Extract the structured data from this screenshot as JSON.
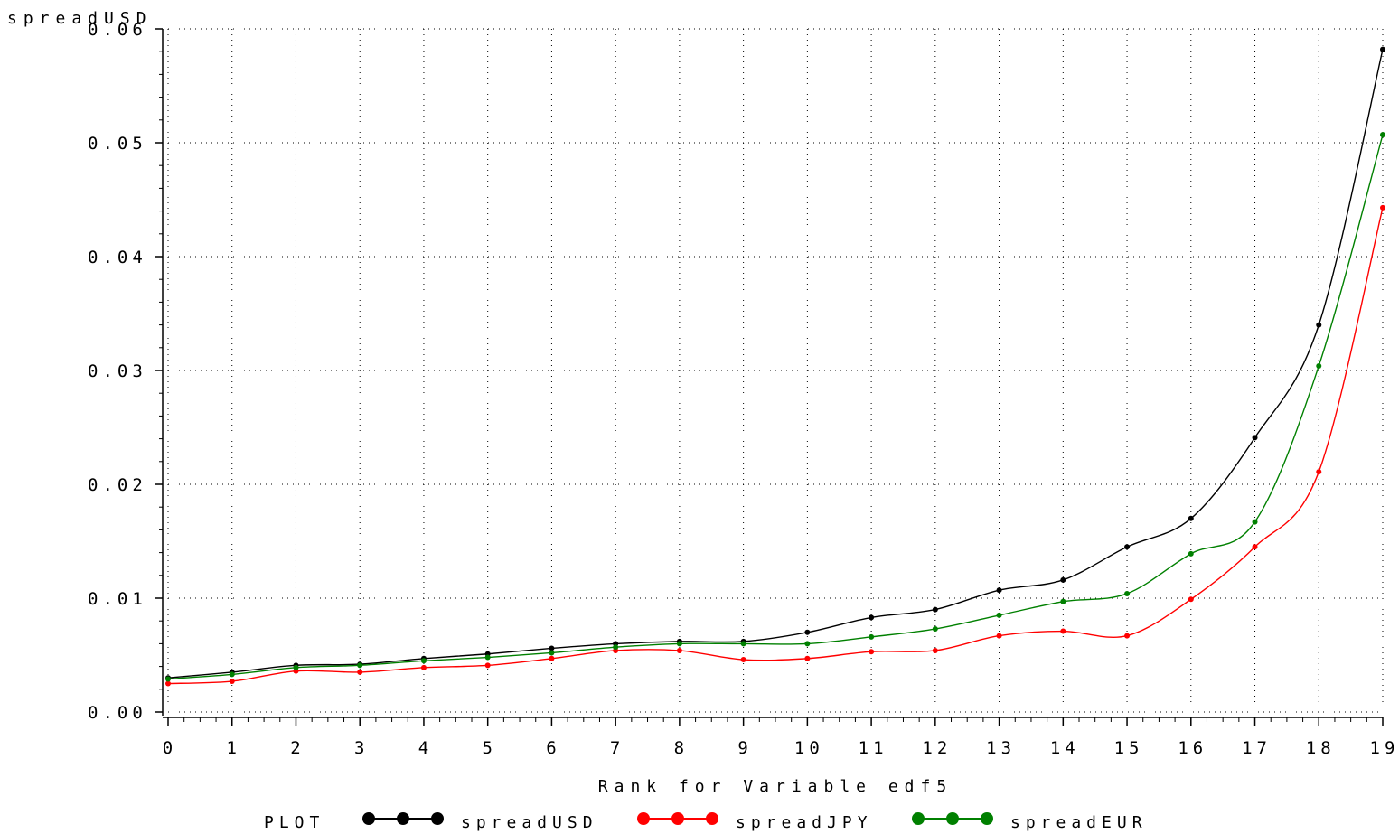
{
  "chart_data": {
    "type": "line",
    "ylabel": "spreadUSD",
    "xlabel": "Rank for Variable edf5",
    "x": [
      0,
      1,
      2,
      3,
      4,
      5,
      6,
      7,
      8,
      9,
      10,
      11,
      12,
      13,
      14,
      15,
      16,
      17,
      18,
      19
    ],
    "x_tick_labels": [
      "0",
      "1",
      "2",
      "3",
      "4",
      "5",
      "6",
      "7",
      "8",
      "9",
      "10",
      "11",
      "12",
      "13",
      "14",
      "15",
      "16",
      "17",
      "18",
      "19"
    ],
    "y_tick_labels": [
      "0.00",
      "0.01",
      "0.02",
      "0.03",
      "0.04",
      "0.05",
      "0.06"
    ],
    "y_ticks": [
      0,
      0.01,
      0.02,
      0.03,
      0.04,
      0.05,
      0.06
    ],
    "xlim": [
      0,
      19
    ],
    "ylim": [
      0,
      0.06
    ],
    "grid": true,
    "legend": {
      "title": "PLOT",
      "placement": "bottom"
    },
    "series": [
      {
        "name": "spreadUSD",
        "color": "#000000",
        "values": [
          0.003,
          0.0035,
          0.0041,
          0.0042,
          0.0047,
          0.0051,
          0.0056,
          0.006,
          0.0062,
          0.0062,
          0.007,
          0.0083,
          0.009,
          0.0107,
          0.0116,
          0.0145,
          0.017,
          0.0241,
          0.034,
          0.0582
        ]
      },
      {
        "name": "spreadJPY",
        "color": "#ff0000",
        "values": [
          0.0025,
          0.0027,
          0.0036,
          0.0035,
          0.0039,
          0.0041,
          0.0047,
          0.0054,
          0.0054,
          0.0046,
          0.0047,
          0.0053,
          0.0054,
          0.0067,
          0.0071,
          0.0067,
          0.0099,
          0.0145,
          0.0211,
          0.0443
        ]
      },
      {
        "name": "spreadEUR",
        "color": "#008000",
        "values": [
          0.0029,
          0.0033,
          0.0039,
          0.0041,
          0.0045,
          0.0048,
          0.0052,
          0.0057,
          0.006,
          0.006,
          0.006,
          0.0066,
          0.0073,
          0.0085,
          0.0097,
          0.0104,
          0.0139,
          0.0167,
          0.0304,
          0.0507
        ]
      }
    ]
  }
}
